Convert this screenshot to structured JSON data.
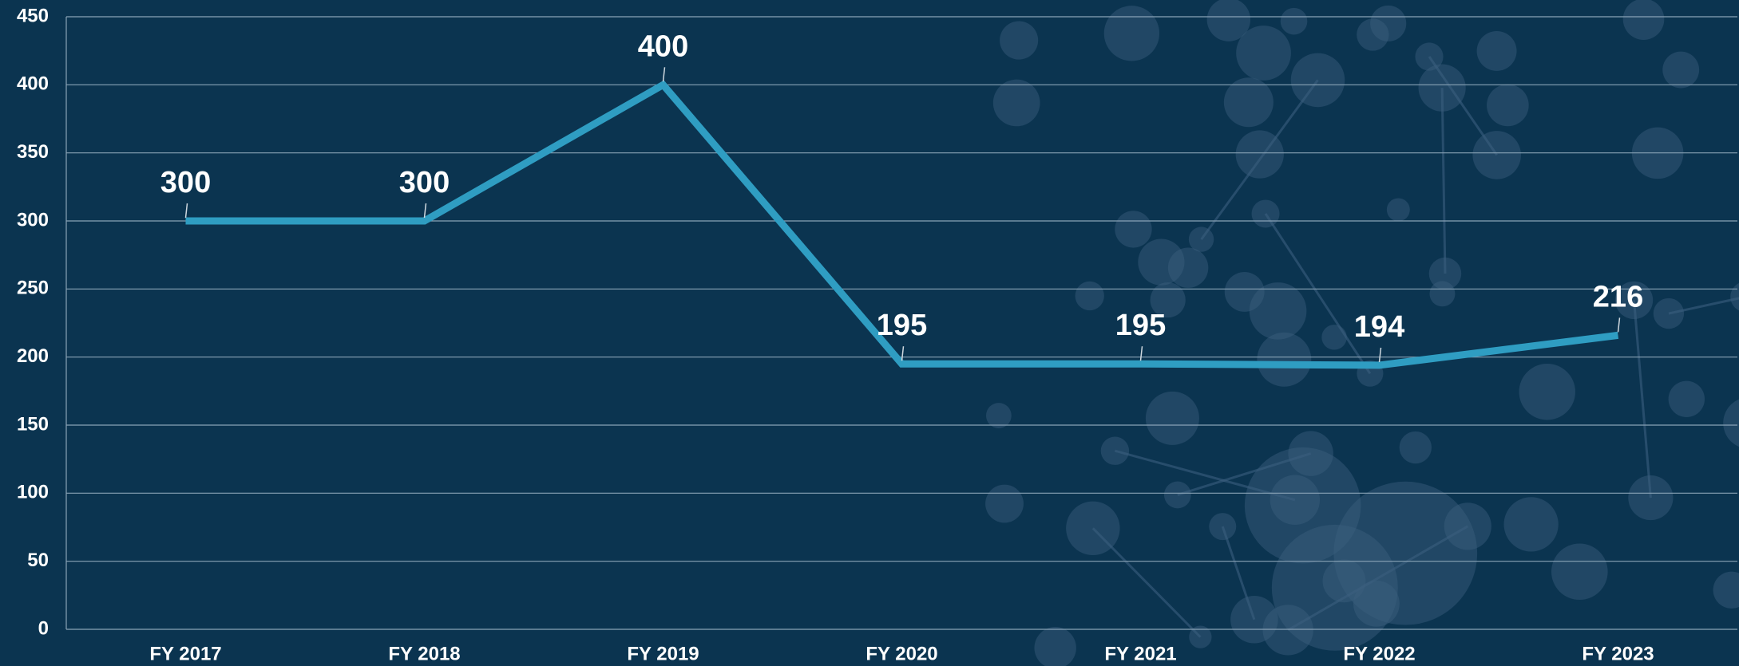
{
  "chart_data": {
    "type": "line",
    "categories": [
      "FY 2017",
      "FY 2018",
      "FY 2019",
      "FY 2020",
      "FY 2021",
      "FY 2022",
      "FY 2023"
    ],
    "values": [
      300,
      300,
      400,
      195,
      195,
      194,
      216
    ],
    "color": "#2f9dc2",
    "ylim": [
      0,
      450
    ],
    "yticks": [
      0,
      50,
      100,
      150,
      200,
      250,
      300,
      350,
      400,
      450
    ],
    "grid": true,
    "data_labels": true
  }
}
